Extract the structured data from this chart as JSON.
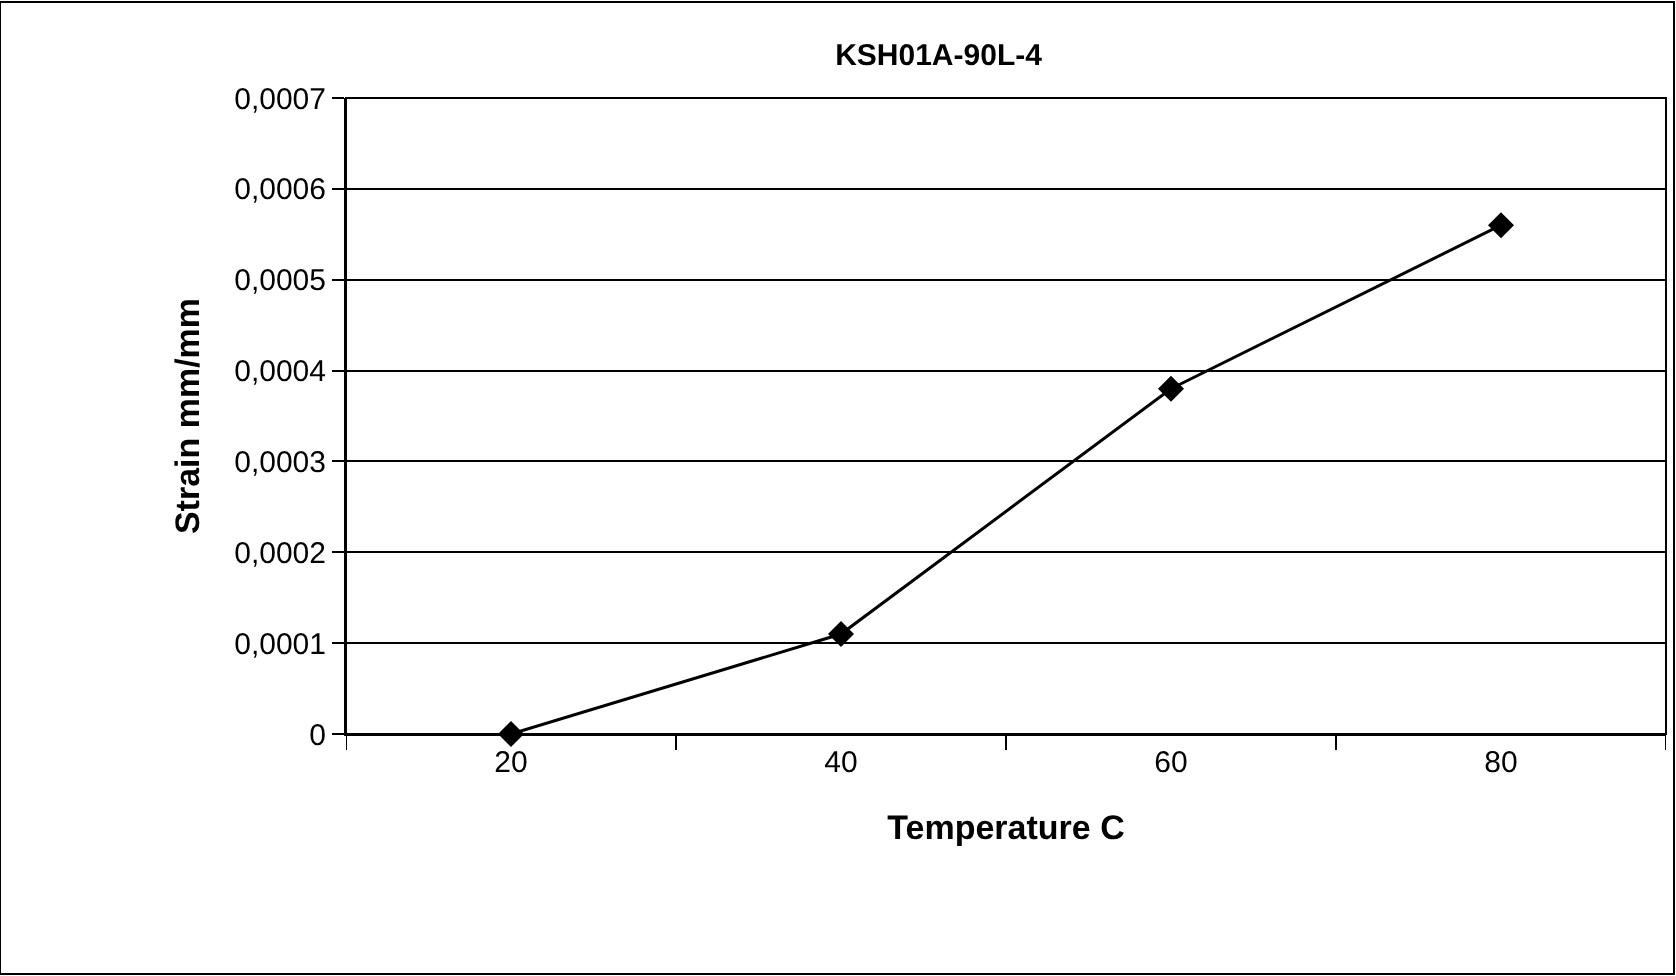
{
  "chart_data": {
    "type": "line",
    "title": "KSH01A-90L-4",
    "xlabel": "Temperature C",
    "ylabel": "Strain mm/mm",
    "categories": [
      "20",
      "40",
      "60",
      "80"
    ],
    "series": [
      {
        "color": "#000000",
        "values": [
          0,
          0.00011,
          0.00038,
          0.00056
        ]
      }
    ],
    "ylim": [
      0,
      0.0007
    ],
    "yticks": [
      0,
      {
        "value": 0.0001,
        "label": "0,0001"
      },
      {
        "value": 0.0002,
        "label": "0,0002"
      },
      {
        "value": 0.0003,
        "label": "0,0003"
      },
      {
        "value": 0.0004,
        "label": "0,0004"
      },
      {
        "value": 0.0005,
        "label": "0,0005"
      },
      {
        "value": 0.0006,
        "label": "0,0006"
      },
      {
        "value": 0.0007,
        "label": "0,0007"
      }
    ],
    "grid": "y",
    "legend": false,
    "marker": "diamond",
    "line_style": "solid"
  }
}
